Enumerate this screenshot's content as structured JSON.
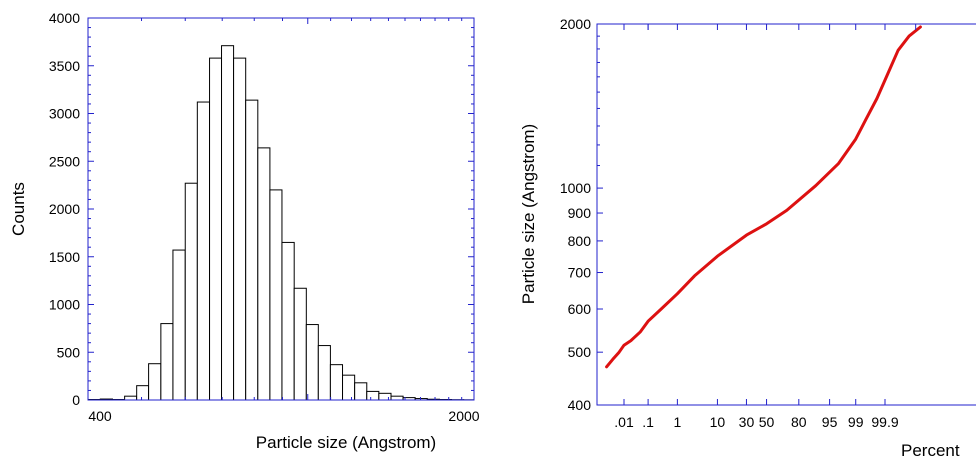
{
  "chart_data": [
    {
      "type": "bar",
      "xlabel": "Particle size (Angstrom)",
      "ylabel": "Counts",
      "x_scale": "log",
      "xlim": [
        400,
        2000
      ],
      "ylim": [
        0,
        4000
      ],
      "x_tick_labels": [
        "400",
        "2000"
      ],
      "y_tick_labels": [
        "0",
        "500",
        "1000",
        "1500",
        "2000",
        "2500",
        "3000",
        "3500",
        "4000"
      ],
      "bin_edges": [
        400,
        421,
        443,
        466,
        490,
        515,
        542,
        570,
        600,
        631,
        664,
        698,
        734,
        772,
        812,
        854,
        898,
        945,
        994,
        1045,
        1099,
        1156,
        1216,
        1279,
        1345,
        1415,
        1488,
        1565,
        1646,
        1732,
        1821,
        1916,
        2000
      ],
      "values": [
        5,
        10,
        5,
        40,
        150,
        380,
        800,
        1570,
        2270,
        3120,
        3580,
        3710,
        3580,
        3140,
        2640,
        2200,
        1650,
        1170,
        790,
        570,
        370,
        260,
        180,
        90,
        70,
        40,
        25,
        15,
        8,
        5,
        3,
        2
      ],
      "grid": false,
      "colors": {
        "frame": "#2222cc",
        "bar_fill": "#ffffff",
        "bar_edge": "#000000"
      }
    },
    {
      "type": "line",
      "xlabel": "Percent",
      "ylabel": "Particle size (Angstrom)",
      "x_scale": "probability",
      "y_scale": "log",
      "ylim": [
        400,
        2000
      ],
      "x_tick_labels": [
        ".01",
        ".1",
        "1",
        "10",
        "30",
        "50",
        "80",
        "95",
        "99",
        "99.9"
      ],
      "x_tick_values": [
        0.01,
        0.1,
        1,
        10,
        30,
        50,
        80,
        95,
        99,
        99.9
      ],
      "y_tick_labels": [
        "400",
        "500",
        "600",
        "700",
        "800",
        "900",
        "1000",
        "2000"
      ],
      "y_tick_values": [
        400,
        500,
        600,
        700,
        800,
        900,
        1000,
        2000
      ],
      "series": [
        {
          "color": "#dd1111",
          "x": [
            0.0015,
            0.003,
            0.006,
            0.01,
            0.02,
            0.05,
            0.1,
            0.3,
            1,
            3,
            10,
            30,
            50,
            70,
            90,
            97,
            99,
            99.5,
            99.8,
            99.93,
            99.97,
            99.99,
            99.997
          ],
          "y": [
            470,
            485,
            500,
            515,
            525,
            545,
            570,
            600,
            640,
            690,
            750,
            820,
            860,
            910,
            1010,
            1110,
            1230,
            1330,
            1460,
            1640,
            1790,
            1900,
            1975
          ]
        }
      ],
      "grid": false,
      "colors": {
        "frame": "#2222cc",
        "line": "#dd1111"
      }
    }
  ]
}
